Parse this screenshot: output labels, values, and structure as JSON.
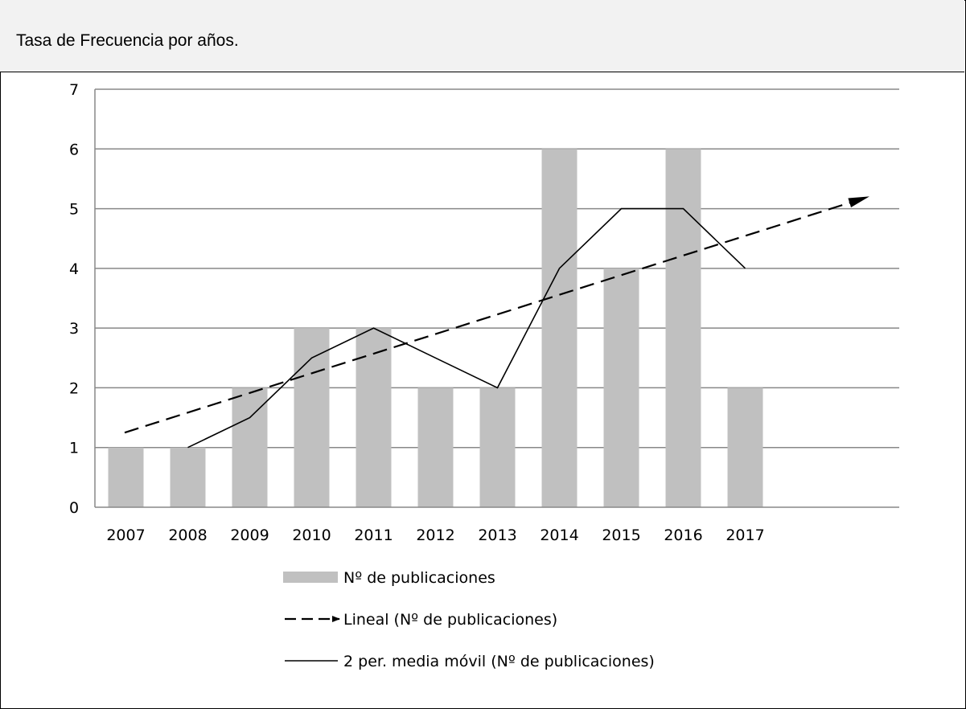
{
  "header": {
    "title": "Tasa de Frecuencia por años."
  },
  "chart_data": {
    "type": "bar",
    "categories": [
      "2007",
      "2008",
      "2009",
      "2010",
      "2011",
      "2012",
      "2013",
      "2014",
      "2015",
      "2016",
      "2017"
    ],
    "series": [
      {
        "name": "Nº de publicaciones",
        "type": "bar",
        "color": "#c0c0c0",
        "values": [
          1,
          1,
          2,
          3,
          3,
          2,
          2,
          6,
          4,
          6,
          2
        ]
      },
      {
        "name": "Lineal (Nº de publicaciones)",
        "type": "trendline",
        "style": "dashed-arrow",
        "color": "#000000",
        "start": 1.25,
        "end": 5.2
      },
      {
        "name": "2 per. media móvil (Nº de publicaciones)",
        "type": "line",
        "color": "#000000",
        "values": [
          null,
          1,
          1.5,
          2.5,
          3,
          2.5,
          2,
          4,
          5,
          5,
          4
        ]
      }
    ],
    "yticks": [
      "0",
      "1",
      "2",
      "3",
      "4",
      "5",
      "6",
      "7"
    ],
    "ylim": [
      0,
      7
    ],
    "grid": true,
    "legend_position": "bottom"
  }
}
